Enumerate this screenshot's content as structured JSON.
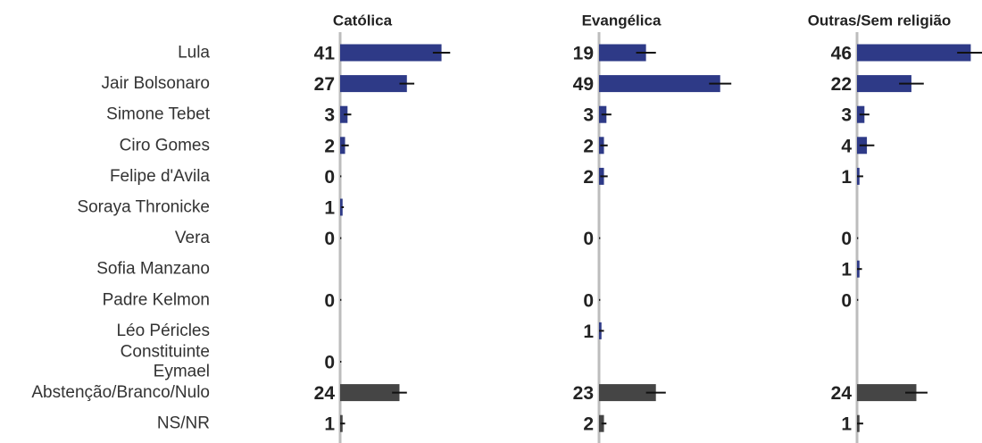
{
  "chart_data": {
    "type": "bar",
    "orientation": "horizontal",
    "panels": [
      "Católica",
      "Evangélica",
      "Outras/Sem religião"
    ],
    "categories": [
      "Lula",
      "Jair Bolsonaro",
      "Simone Tebet",
      "Ciro Gomes",
      "Felipe d'Avila",
      "Soraya Thronicke",
      "Vera",
      "Sofia Manzano",
      "Padre Kelmon",
      "Léo Péricles",
      "Constituinte Eymael",
      "Abstenção/Branco/Nulo",
      "NS/NR"
    ],
    "category_lines": [
      [
        "Lula"
      ],
      [
        "Jair Bolsonaro"
      ],
      [
        "Simone Tebet"
      ],
      [
        "Ciro Gomes"
      ],
      [
        "Felipe d'Avila"
      ],
      [
        "Soraya Thronicke"
      ],
      [
        "Vera"
      ],
      [
        "Sofia Manzano"
      ],
      [
        "Padre Kelmon"
      ],
      [
        "Léo Péricles"
      ],
      [
        "Constituinte",
        "Eymael"
      ],
      [
        "Abstenção/Branco/Nulo"
      ],
      [
        "NS/NR"
      ]
    ],
    "series": [
      {
        "name": "Católica",
        "values": [
          41,
          27,
          3,
          2,
          0,
          1,
          0,
          null,
          0,
          null,
          0,
          24,
          1
        ]
      },
      {
        "name": "Evangélica",
        "values": [
          19,
          49,
          3,
          2,
          2,
          null,
          0,
          null,
          0,
          1,
          null,
          23,
          2
        ]
      },
      {
        "name": "Outras/Sem religião",
        "values": [
          46,
          22,
          3,
          4,
          1,
          null,
          0,
          1,
          0,
          null,
          null,
          24,
          1
        ]
      }
    ],
    "error_margin": [
      [
        3.5,
        3,
        1.5,
        1.5,
        0.5,
        0.5,
        0.5,
        null,
        0.5,
        null,
        0.5,
        3,
        1
      ],
      [
        4,
        4.5,
        2,
        1.5,
        1.5,
        null,
        0.5,
        null,
        0.5,
        1,
        null,
        4,
        1
      ],
      [
        5.5,
        5,
        2,
        3,
        1.5,
        null,
        0.5,
        1,
        0.5,
        null,
        null,
        4.5,
        1.5
      ]
    ],
    "bar_colors": {
      "candidate": "#2e3a87",
      "other": "#454545"
    },
    "muted_categories": [
      "Abstenção/Branco/Nulo",
      "NS/NR"
    ],
    "xlim": [
      0,
      50
    ],
    "grid": false,
    "legend": "none"
  }
}
